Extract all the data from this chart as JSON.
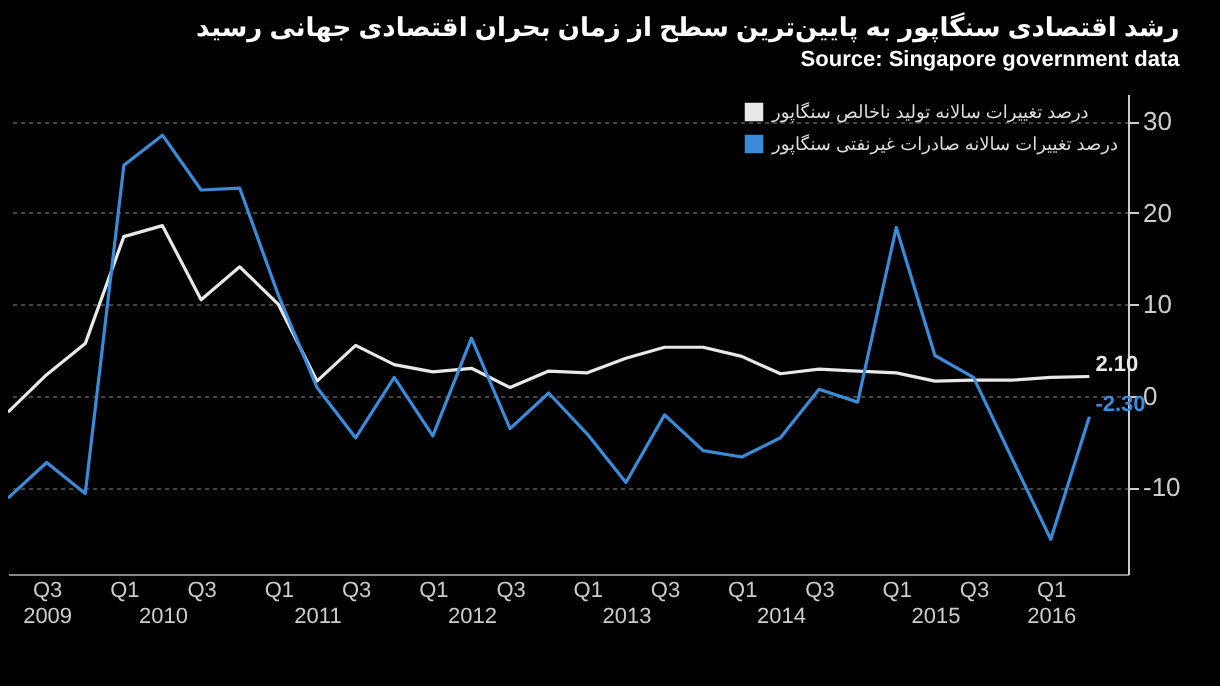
{
  "chart_data": {
    "type": "line",
    "title": "رشد اقتصادی سنگاپور به پایین‌ترین سطح از زمان بحران اقتصادی جهانی رسید",
    "categories": [
      null,
      "Q3\n2009",
      null,
      "Q1",
      "\n2010",
      "Q3",
      null,
      "Q1",
      "\n2011",
      "Q3",
      null,
      "Q1",
      "\n2012",
      "Q3",
      null,
      "Q1",
      "\n2013",
      "Q3",
      null,
      "Q1",
      "\n2014",
      "Q3",
      null,
      "Q1",
      "\n2015",
      "Q3",
      null,
      "Q1\n2016",
      null
    ],
    "series": [
      {
        "name": "درصد تغییرات سالانه تولید ناخالص سنگاپور",
        "color": "#e8e8e8",
        "values": [
          -1.8,
          2.3,
          5.7,
          17.4,
          18.6,
          10.5,
          14.1,
          10.0,
          1.6,
          5.5,
          3.4,
          2.6,
          3.0,
          0.9,
          2.7,
          2.5,
          4.1,
          5.3,
          5.3,
          4.3,
          2.4,
          2.9,
          2.7,
          2.5,
          1.6,
          1.7,
          1.7,
          2.0,
          2.1
        ],
        "value_labels": [
          null,
          null,
          null,
          null,
          null,
          null,
          null,
          null,
          null,
          null,
          null,
          null,
          null,
          null,
          null,
          null,
          null,
          null,
          null,
          null,
          null,
          null,
          null,
          null,
          null,
          null,
          null,
          null,
          "2.10"
        ]
      },
      {
        "name": "درصد تغییرات سالانه صادرات غیرنفتی سنگاپور",
        "color": "#3b8bd8",
        "values": [
          -11.2,
          -7.3,
          -10.7,
          25.2,
          28.5,
          22.5,
          22.7,
          11.0,
          0.9,
          -4.6,
          2.0,
          -4.4,
          6.3,
          -3.6,
          0.3,
          -4.2,
          -9.5,
          -2.1,
          -6.0,
          -6.7,
          -4.6,
          0.7,
          -0.7,
          18.4,
          4.4,
          2.0,
          -6.9,
          -15.7,
          -2.3
        ],
        "value_labels": [
          null,
          null,
          null,
          null,
          null,
          null,
          null,
          null,
          null,
          null,
          null,
          null,
          null,
          null,
          null,
          null,
          null,
          null,
          null,
          null,
          null,
          null,
          null,
          null,
          null,
          null,
          null,
          null,
          "-2.30"
        ]
      }
    ],
    "ylim": [
      -19.5,
      33
    ],
    "yticks": [
      -10,
      0,
      10,
      20,
      30
    ],
    "grid": "y",
    "legend": "top right",
    "annotations": [
      "Source: Singapore government data"
    ]
  }
}
